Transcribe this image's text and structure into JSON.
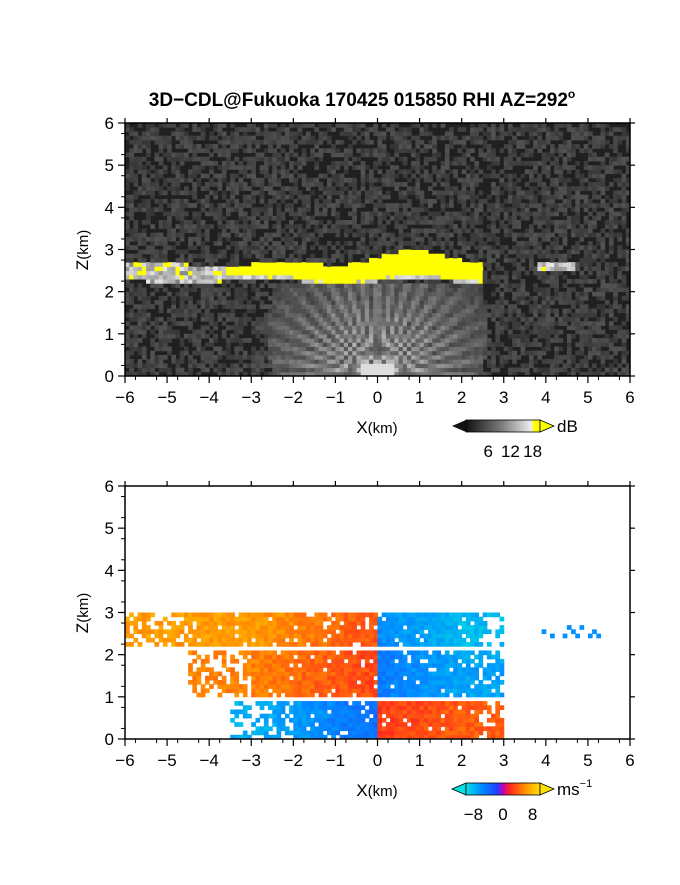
{
  "title": "3D−CDL@Fukuoka 170425 015850 RHI AZ=292",
  "title_degree": "o",
  "chart_data": [
    {
      "type": "heatmap",
      "name": "reflectivity-panel",
      "xlabel_main": "X",
      "xlabel_unit": "(km)",
      "ylabel_main": "Z",
      "ylabel_unit": "(km)",
      "xlim": [
        -6,
        6
      ],
      "ylim": [
        0,
        6
      ],
      "xticks": [
        "−6",
        "−5",
        "−4",
        "−3",
        "−2",
        "−1",
        "0",
        "1",
        "2",
        "3",
        "4",
        "5",
        "6"
      ],
      "yticks": [
        "0",
        "1",
        "2",
        "3",
        "4",
        "5",
        "6"
      ],
      "colorbar": {
        "unit": "dB",
        "ticks": [
          "6",
          "12",
          "18"
        ],
        "range": [
          0,
          20
        ]
      },
      "features": {
        "cloud_layer": {
          "x_range": [
            -6,
            2.5
          ],
          "z_range": [
            2.1,
            2.95
          ],
          "value": "≥18"
        },
        "cloud_fragments": [
          {
            "x": [
              -5.8,
              -5.3
            ],
            "z": 2.55
          },
          {
            "x": [
              3.8,
              4.7
            ],
            "z": 2.6
          }
        ],
        "background_noise_level": "low"
      }
    },
    {
      "type": "heatmap",
      "name": "doppler-velocity-panel",
      "xlabel_main": "X",
      "xlabel_unit": "(km)",
      "ylabel_main": "Z",
      "ylabel_unit": "(km)",
      "xlim": [
        -6,
        6
      ],
      "ylim": [
        0,
        6
      ],
      "xticks": [
        "−6",
        "−5",
        "−4",
        "−3",
        "−2",
        "−1",
        "0",
        "1",
        "2",
        "3",
        "4",
        "5",
        "6"
      ],
      "yticks": [
        "0",
        "1",
        "2",
        "3",
        "4",
        "5",
        "6"
      ],
      "colorbar": {
        "unit": "ms",
        "unit_exponent": "−1",
        "ticks": [
          "−8",
          "0",
          "8"
        ],
        "range": [
          -10,
          10
        ]
      },
      "features": {
        "upper_layer": {
          "x_range": [
            -6,
            3.0
          ],
          "z_range": [
            2.2,
            3.0
          ],
          "left_velocity": 6,
          "right_velocity": -8
        },
        "middle_layer": {
          "x_range": [
            -4.5,
            3.0
          ],
          "z_range": [
            1.0,
            2.1
          ],
          "left_velocity": 5,
          "right_velocity": -7
        },
        "lower_layer": {
          "x_range": [
            -3.5,
            3.0
          ],
          "z_range": [
            0.0,
            0.9
          ],
          "left_velocity": -7,
          "right_velocity": 4
        }
      }
    }
  ]
}
